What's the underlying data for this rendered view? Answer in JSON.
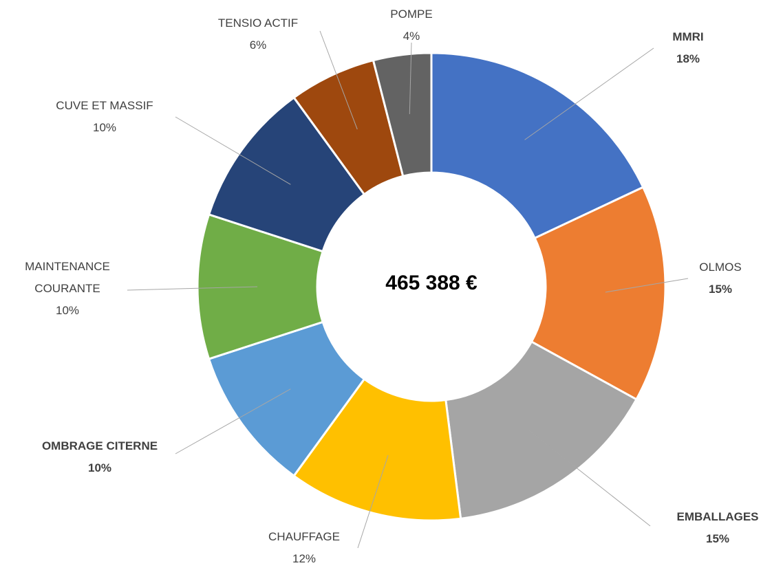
{
  "chart_data": {
    "type": "donut",
    "center_text": "465 388 €",
    "categories": [
      "MMRI",
      "OLMOS",
      "EMBALLAGES",
      "CHAUFFAGE",
      "OMBRAGE CITERNE",
      "MAINTENANCE COURANTE",
      "CUVE ET MASSIF",
      "TENSIO ACTIF",
      "POMPE"
    ],
    "values": [
      18,
      15,
      15,
      12,
      10,
      10,
      10,
      6,
      4
    ],
    "value_labels": [
      "18%",
      "15%",
      "15%",
      "12%",
      "10%",
      "10%",
      "10%",
      "6%",
      "4%"
    ],
    "colors": [
      "#4472c4",
      "#ed7d31",
      "#a5a5a5",
      "#ffc000",
      "#5b9bd5",
      "#70ad47",
      "#264478",
      "#9e480e",
      "#636363"
    ],
    "bold_names": [
      true,
      false,
      true,
      false,
      true,
      false,
      false,
      false,
      false
    ],
    "bold_values": [
      true,
      true,
      true,
      false,
      true,
      false,
      false,
      false,
      false
    ]
  }
}
